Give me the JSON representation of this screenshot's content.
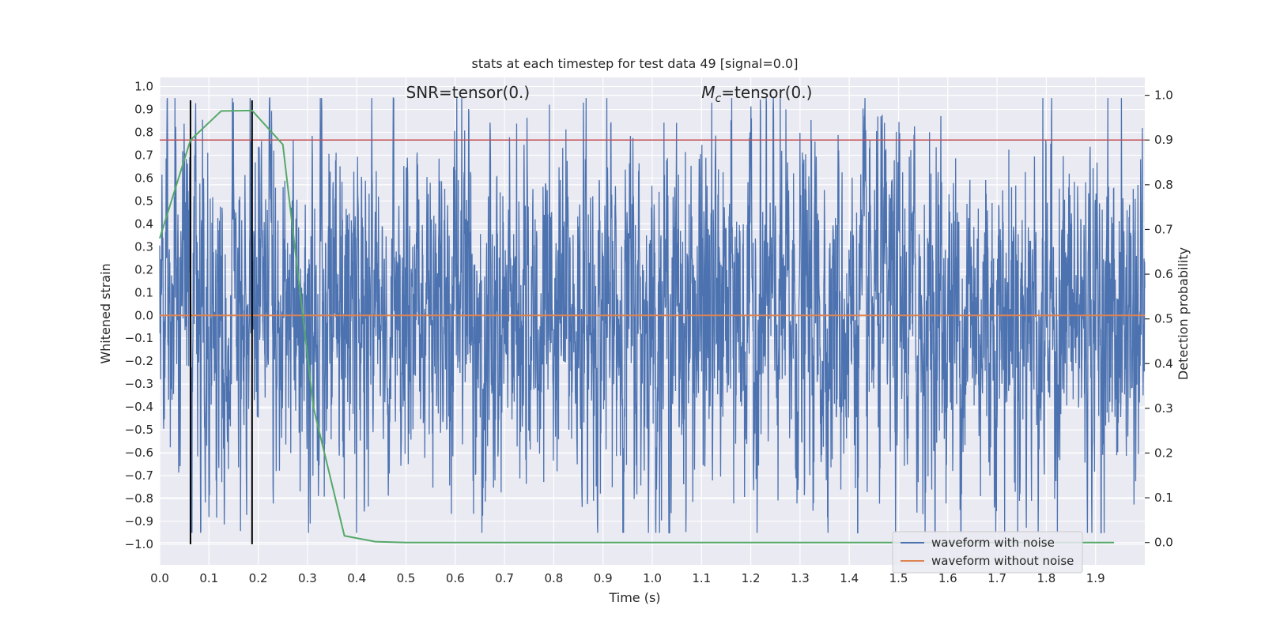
{
  "chart_data": {
    "type": "line",
    "title": "stats at each timestep for test data 49 [signal=0.0]",
    "xlabel": "Time (s)",
    "ylabel_left": "Whitened strain",
    "ylabel_right": "Detection probability",
    "xlim": [
      0.0,
      2.0
    ],
    "ylim_left": [
      -1.09,
      1.04
    ],
    "ylim_right": [
      -0.05,
      1.04
    ],
    "x_ticks": [
      "0.0",
      "0.1",
      "0.2",
      "0.3",
      "0.4",
      "0.5",
      "0.6",
      "0.7",
      "0.8",
      "0.9",
      "1.0",
      "1.1",
      "1.2",
      "1.3",
      "1.4",
      "1.5",
      "1.6",
      "1.7",
      "1.8",
      "1.9"
    ],
    "y_left_ticks": [
      "1.0",
      "0.9",
      "0.8",
      "0.7",
      "0.6",
      "0.5",
      "0.4",
      "0.3",
      "0.2",
      "0.1",
      "0.0",
      "−0.1",
      "−0.2",
      "−0.3",
      "−0.4",
      "−0.5",
      "−0.6",
      "−0.7",
      "−0.8",
      "−0.9",
      "−1.0"
    ],
    "y_right_ticks": [
      "1.0",
      "0.9",
      "0.8",
      "0.7",
      "0.6",
      "0.5",
      "0.4",
      "0.3",
      "0.2",
      "0.1",
      "0.0"
    ],
    "annotations": [
      {
        "text": "SNR=tensor(0.)",
        "x": 0.5,
        "y": 0.95
      },
      {
        "text_parts": [
          "M",
          "c",
          "=tensor(0.)"
        ],
        "x": 1.1,
        "y": 0.95
      }
    ],
    "grid": true,
    "legend_position": "lower right",
    "series": [
      {
        "name": "waveform with noise",
        "color": "#4c72b0",
        "axis": "left",
        "noise_description": "dense random strain noise across full time range",
        "amplitude": 0.95,
        "points_count": 4000
      },
      {
        "name": "waveform without noise",
        "color": "#dd8452",
        "axis": "left",
        "x": [
          0.0,
          2.0
        ],
        "y": [
          0.0,
          0.0
        ]
      },
      {
        "name": "",
        "color": "#55a868",
        "axis": "right",
        "x": [
          0.0,
          0.0625,
          0.125,
          0.1875,
          0.25,
          0.3125,
          0.375,
          0.4375,
          0.5,
          0.5625,
          0.625,
          0.6875,
          0.75,
          0.8125,
          0.875,
          0.9375,
          1.0,
          1.0625,
          1.125,
          1.1875,
          1.25,
          1.3125,
          1.375,
          1.4375,
          1.5,
          1.5625,
          1.625,
          1.6875,
          1.75,
          1.8125,
          1.875,
          1.9375
        ],
        "y": [
          0.68,
          0.9,
          0.965,
          0.966,
          0.89,
          0.3,
          0.015,
          0.002,
          0.0,
          0.0,
          0.0,
          0.0,
          0.0,
          0.0,
          0.0,
          0.0,
          0.0,
          0.0,
          0.0,
          0.0,
          0.0,
          0.0,
          0.0,
          0.0,
          0.0,
          0.0,
          0.0,
          0.0,
          0.0,
          0.0,
          0.0,
          0.0
        ]
      }
    ],
    "threshold": {
      "axis": "right",
      "y": 0.9,
      "color": "#c44e52"
    },
    "vlines": [
      {
        "x": 0.0625,
        "ymin": -1.0,
        "ymax": 0.94,
        "color": "#000000"
      },
      {
        "x": 0.1875,
        "ymin": -1.0,
        "ymax": 0.94,
        "color": "#000000"
      }
    ]
  },
  "legend": {
    "items": [
      {
        "label": "waveform with noise",
        "color": "#4c72b0"
      },
      {
        "label": "waveform without noise",
        "color": "#dd8452"
      }
    ]
  },
  "colors": {
    "plot_background": "#eaeaf2",
    "grid": "#ffffff",
    "text": "#262626"
  }
}
